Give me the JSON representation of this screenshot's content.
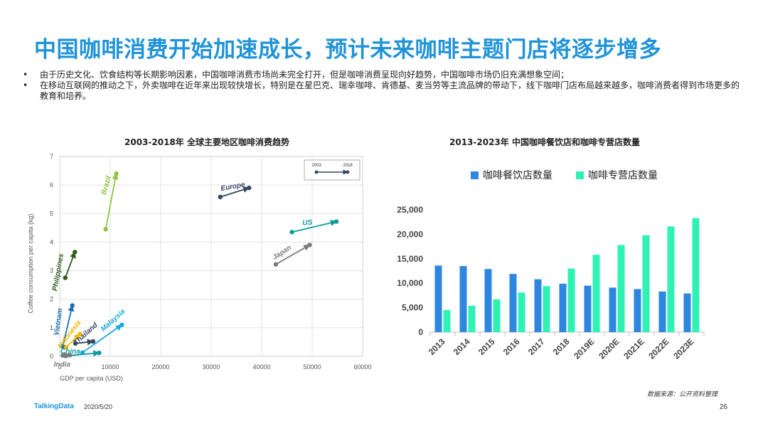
{
  "page": {
    "title": "中国咖啡消费开始加速成长，预计未来咖啡主题门店将逐步增多",
    "bullets": [
      "由于历史文化、饮食结构等长期影响因素，中国咖啡消费市场尚未完全打开，但是咖啡消费呈现向好趋势，中国咖啡市场仍旧充满想象空间；",
      "在移动互联网的推动之下，外卖咖啡在近年来出现较快增长，特别是在星巴克、瑞幸咖啡、肯德基、麦当劳等主流品牌的带动下，线下咖啡门店布局越来越多，咖啡消费者得到市场更多的教育和培养。"
    ],
    "bullet_symbol": "•",
    "source": "数据来源：公开资料整理",
    "logo": "TalkingData",
    "date": "2020/5/20",
    "page_number": "26"
  },
  "chart_data": [
    {
      "type": "scatter",
      "title": "2003-2018年 全球主要地区咖啡消费趋势",
      "xlabel": "GDP per capita (USD)",
      "ylabel": "Coffee consumption per capita (kg)",
      "xlim": [
        0,
        60000
      ],
      "ylim": [
        0,
        7
      ],
      "xticks": [
        0,
        10000,
        20000,
        30000,
        40000,
        50000,
        60000
      ],
      "yticks": [
        0,
        1,
        2,
        3,
        4,
        5,
        6,
        7
      ],
      "grid": true,
      "legend": {
        "start": "2003",
        "end": "2018",
        "position": "top-right"
      },
      "series": [
        {
          "name": "Europe",
          "color": "#37475f",
          "x": [
            31800,
            37500
          ],
          "y": [
            5.58,
            5.9
          ]
        },
        {
          "name": "US",
          "color": "#0e9b9b",
          "x": [
            46000,
            54800
          ],
          "y": [
            4.35,
            4.72
          ]
        },
        {
          "name": "Japan",
          "color": "#7a7a7a",
          "x": [
            42800,
            49500
          ],
          "y": [
            3.22,
            3.9
          ]
        },
        {
          "name": "Brazil",
          "color": "#8dc63f",
          "x": [
            9100,
            11200
          ],
          "y": [
            4.45,
            6.4
          ]
        },
        {
          "name": "Philippines",
          "color": "#2e5c1a",
          "x": [
            1100,
            3000
          ],
          "y": [
            2.75,
            3.65
          ]
        },
        {
          "name": "Vietnam",
          "color": "#1b6fb0",
          "x": [
            600,
            2500
          ],
          "y": [
            0.35,
            1.78
          ]
        },
        {
          "name": "Indonesia",
          "color": "#f0b800",
          "x": [
            1300,
            4000
          ],
          "y": [
            0.32,
            0.78
          ]
        },
        {
          "name": "Thailand",
          "color": "#37475f",
          "x": [
            3100,
            6600
          ],
          "y": [
            0.45,
            0.52
          ]
        },
        {
          "name": "Malaysia",
          "color": "#19a9e1",
          "x": [
            4500,
            12300
          ],
          "y": [
            0.13,
            1.1
          ]
        },
        {
          "name": "China",
          "color": "#0e9b9b",
          "x": [
            1300,
            7800
          ],
          "y": [
            0.02,
            0.12
          ]
        },
        {
          "name": "India",
          "color": "#7a7a7a",
          "x": [
            600,
            2000
          ],
          "y": [
            0.03,
            0.04
          ]
        }
      ]
    },
    {
      "type": "bar",
      "title": "2013-2023年 中国咖啡餐饮店和咖啡专营店数量",
      "categories": [
        "2013",
        "2014",
        "2015",
        "2016",
        "2017",
        "2018",
        "2019E",
        "2020E",
        "2021E",
        "2022E",
        "2023E"
      ],
      "series": [
        {
          "name": "咖啡餐饮店数量",
          "color": "#2d86e0",
          "values": [
            13600,
            13500,
            12900,
            11900,
            10800,
            9900,
            9500,
            9100,
            8800,
            8300,
            7900
          ]
        },
        {
          "name": "咖啡专营店数量",
          "color": "#2df2b4",
          "values": [
            4500,
            5400,
            6700,
            8100,
            9400,
            13000,
            15800,
            17800,
            19800,
            21600,
            23300
          ]
        }
      ],
      "ylim": [
        0,
        25000
      ],
      "yticks": [
        "0",
        "5,000",
        "10,000",
        "15,000",
        "20,000",
        "25,000"
      ],
      "legend": "top",
      "grid": false
    }
  ]
}
